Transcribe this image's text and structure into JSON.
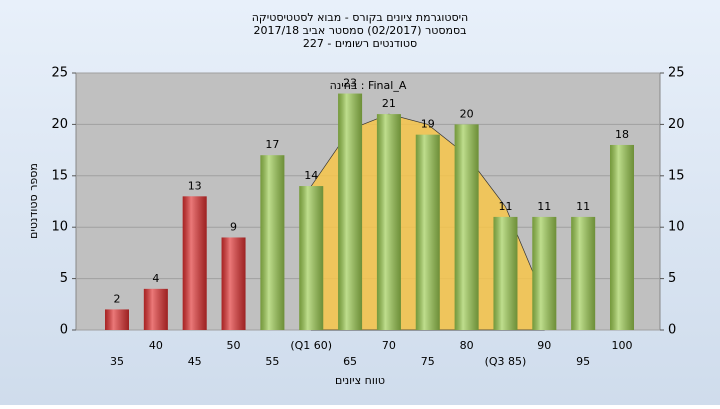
{
  "chart_data": {
    "type": "bar",
    "title": "היסטוגרמת ציונים בקורס - מבוא לסטטיסטיקה",
    "subtitle": "בסמסטר  (02/2017)  סמסטר אביב 2017/18",
    "subtitle2": "סטודנטים רשומים - 227",
    "annotation": "בחינה : Final_A",
    "x_label": "טווח ציונים",
    "y_label": "מספר סטודנטים",
    "categories": [
      "35",
      "40",
      "45",
      "50",
      "55",
      "(Q1 60)",
      "65",
      "70",
      "75",
      "80",
      "(Q3 85)",
      "90",
      "95",
      "100"
    ],
    "values": [
      2,
      4,
      13,
      9,
      17,
      14,
      23,
      21,
      19,
      20,
      11,
      11,
      11,
      18
    ],
    "colors": [
      "#e03030",
      "#e03030",
      "#e03030",
      "#e03030",
      "#9ccc50",
      "#9ccc50",
      "#9ccc50",
      "#9ccc50",
      "#9ccc50",
      "#9ccc50",
      "#9ccc50",
      "#9ccc50",
      "#9ccc50",
      "#9ccc50"
    ],
    "curve": {
      "color": "#f7c64a",
      "values": [
        null,
        null,
        null,
        null,
        null,
        14,
        19.5,
        21,
        20,
        17,
        12,
        3,
        null,
        null
      ]
    },
    "ylim": [
      0,
      25
    ],
    "yticks": [
      0,
      5,
      10,
      15,
      20,
      25
    ],
    "grid": true
  }
}
